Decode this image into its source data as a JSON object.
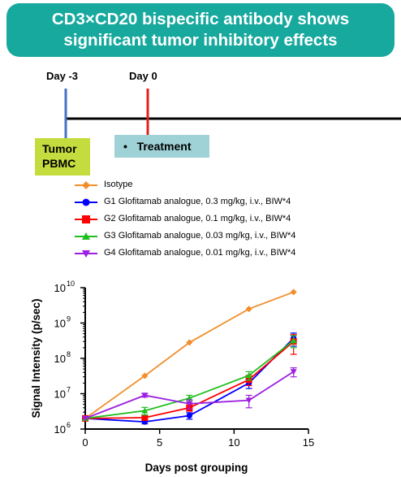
{
  "banner": {
    "line1": "CD3×CD20 bispecific antibody shows",
    "line2": "significant tumor inhibitory effects"
  },
  "timeline": {
    "day_minus3_label": "Day -3",
    "day0_label": "Day 0",
    "tumor_line1": "Tumor",
    "tumor_line2": "PBMC",
    "treatment_bullet": "•",
    "treatment_label": "Treatment",
    "colors": {
      "day_minus3": "#4472c4",
      "day0": "#e3201b",
      "axis": "#000000"
    }
  },
  "chart_data": {
    "type": "line",
    "xlabel": "Days post grouping",
    "ylabel": "Signal Intensity (p/sec)",
    "xlim": [
      0,
      15
    ],
    "xticks": [
      0,
      5,
      10,
      15
    ],
    "ylim": [
      1000000,
      10000000000
    ],
    "y_scale": "log",
    "yticks": [
      {
        "value": 1000000,
        "base": "10",
        "exp": "6"
      },
      {
        "value": 10000000,
        "base": "10",
        "exp": "7"
      },
      {
        "value": 100000000,
        "base": "10",
        "exp": "8"
      },
      {
        "value": 1000000000,
        "base": "10",
        "exp": "9"
      },
      {
        "value": 10000000000,
        "base": "10",
        "exp": "10"
      }
    ],
    "grid": false,
    "legend_position": "top",
    "x": [
      0,
      4,
      7,
      11,
      14
    ],
    "series": [
      {
        "name": "Isotype",
        "color": "#f28e2b",
        "marker": "diamond",
        "values": [
          2000000,
          32000000,
          280000000,
          2500000000,
          7500000000
        ],
        "errors": [
          0,
          0,
          0,
          0,
          0
        ]
      },
      {
        "name": "G1 Glofitamab analogue, 0.3 mg/kg, i.v., BIW*4",
        "color": "#0000ff",
        "marker": "circle",
        "values": [
          2000000,
          1600000,
          2400000,
          20000000,
          370000000
        ],
        "errors": [
          0,
          200000,
          500000,
          6000000,
          150000000
        ]
      },
      {
        "name": "G2 Glofitamab analogue, 0.1 mg/kg, i.v., BIW*4",
        "color": "#ff0000",
        "marker": "square",
        "values": [
          2000000,
          2100000,
          4000000,
          25000000,
          300000000
        ],
        "errors": [
          0,
          300000,
          800000,
          8000000,
          170000000
        ]
      },
      {
        "name": "G3 Glofitamab analogue, 0.03 mg/kg, i.v., BIW*4",
        "color": "#1fbf1f",
        "marker": "triangle-up",
        "values": [
          2000000,
          3300000,
          7500000,
          33000000,
          320000000
        ],
        "errors": [
          0,
          800000,
          1500000,
          9000000,
          120000000
        ]
      },
      {
        "name": "G4 Glofitamab analogue, 0.01 mg/kg, i.v., BIW*4",
        "color": "#9b1fe0",
        "marker": "triangle-down",
        "values": [
          2000000,
          9000000,
          5200000,
          6500000,
          42000000
        ],
        "errors": [
          0,
          1000000,
          1500000,
          2500000,
          12000000
        ]
      }
    ]
  }
}
